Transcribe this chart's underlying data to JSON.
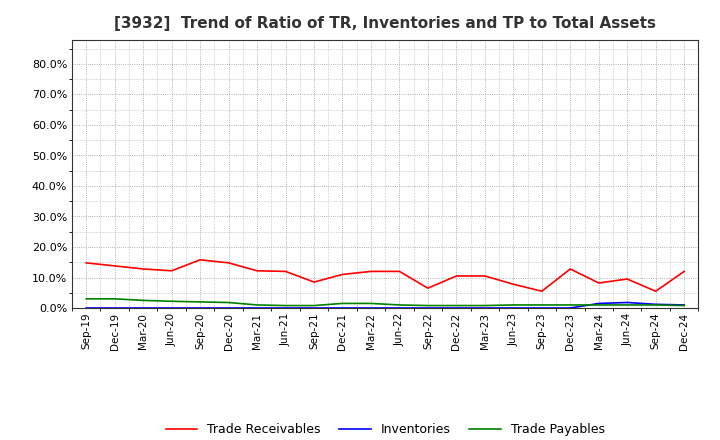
{
  "title": "[3932]  Trend of Ratio of TR, Inventories and TP to Total Assets",
  "x_labels": [
    "Sep-19",
    "Dec-19",
    "Mar-20",
    "Jun-20",
    "Sep-20",
    "Dec-20",
    "Mar-21",
    "Jun-21",
    "Sep-21",
    "Dec-21",
    "Mar-22",
    "Jun-22",
    "Sep-22",
    "Dec-22",
    "Mar-23",
    "Jun-23",
    "Sep-23",
    "Dec-23",
    "Mar-24",
    "Jun-24",
    "Sep-24",
    "Dec-24"
  ],
  "trade_receivables": [
    0.148,
    0.138,
    0.128,
    0.122,
    0.158,
    0.148,
    0.122,
    0.12,
    0.085,
    0.11,
    0.12,
    0.12,
    0.065,
    0.105,
    0.105,
    0.078,
    0.055,
    0.128,
    0.082,
    0.095,
    0.055,
    0.12
  ],
  "inventories": [
    0.0,
    0.0,
    0.0,
    0.0,
    0.0,
    0.0,
    0.0,
    0.0,
    0.0,
    0.0,
    0.0,
    0.0,
    0.0,
    0.0,
    0.0,
    0.0,
    0.0,
    0.0,
    0.015,
    0.018,
    0.012,
    0.01
  ],
  "trade_payables": [
    0.03,
    0.03,
    0.025,
    0.022,
    0.02,
    0.018,
    0.01,
    0.008,
    0.008,
    0.015,
    0.015,
    0.01,
    0.008,
    0.008,
    0.008,
    0.01,
    0.01,
    0.01,
    0.01,
    0.01,
    0.01,
    0.008
  ],
  "tr_color": "#FF0000",
  "inv_color": "#0000FF",
  "tp_color": "#008000",
  "ylim": [
    0.0,
    0.88
  ],
  "yticks": [
    0.0,
    0.1,
    0.2,
    0.3,
    0.4,
    0.5,
    0.6,
    0.7,
    0.8
  ],
  "bg_color": "#FFFFFF",
  "plot_bg_color": "#FFFFFF",
  "grid_color": "#999999",
  "legend_labels": [
    "Trade Receivables",
    "Inventories",
    "Trade Payables"
  ]
}
